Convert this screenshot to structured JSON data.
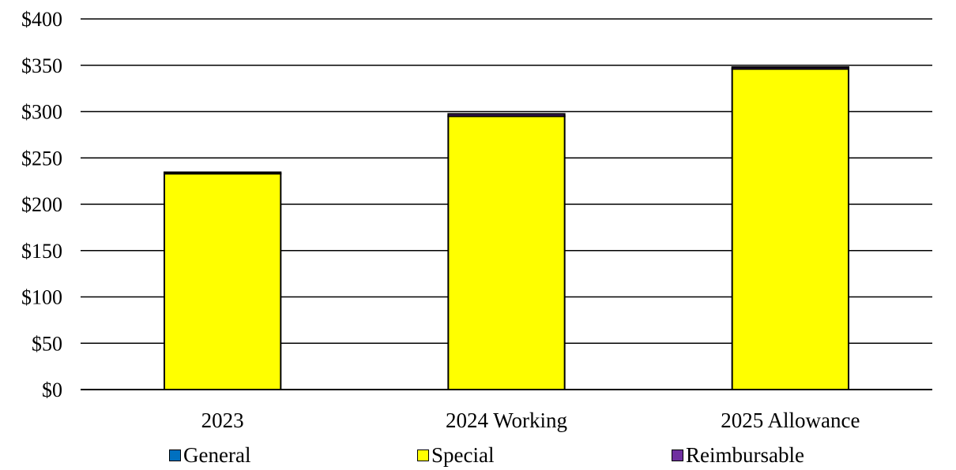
{
  "chart_data": {
    "type": "bar",
    "stacked": true,
    "categories": [
      "2023",
      "2024 Working",
      "2025 Allowance"
    ],
    "series": [
      {
        "name": "General",
        "color": "#0070C0",
        "values": [
          0,
          0,
          0
        ]
      },
      {
        "name": "Special",
        "color": "#FFFF00",
        "values": [
          233,
          295,
          346
        ]
      },
      {
        "name": "Reimbursable",
        "color": "#7030A0",
        "values": [
          1.5,
          2.5,
          2.0
        ]
      }
    ],
    "ylim": [
      0,
      400
    ],
    "yticks": [
      0,
      50,
      100,
      150,
      200,
      250,
      300,
      350,
      400
    ],
    "ytick_labels": [
      "$0",
      "$50",
      "$100",
      "$150",
      "$200",
      "$250",
      "$300",
      "$350",
      "$400"
    ],
    "grid": true,
    "legend_position": "bottom"
  }
}
